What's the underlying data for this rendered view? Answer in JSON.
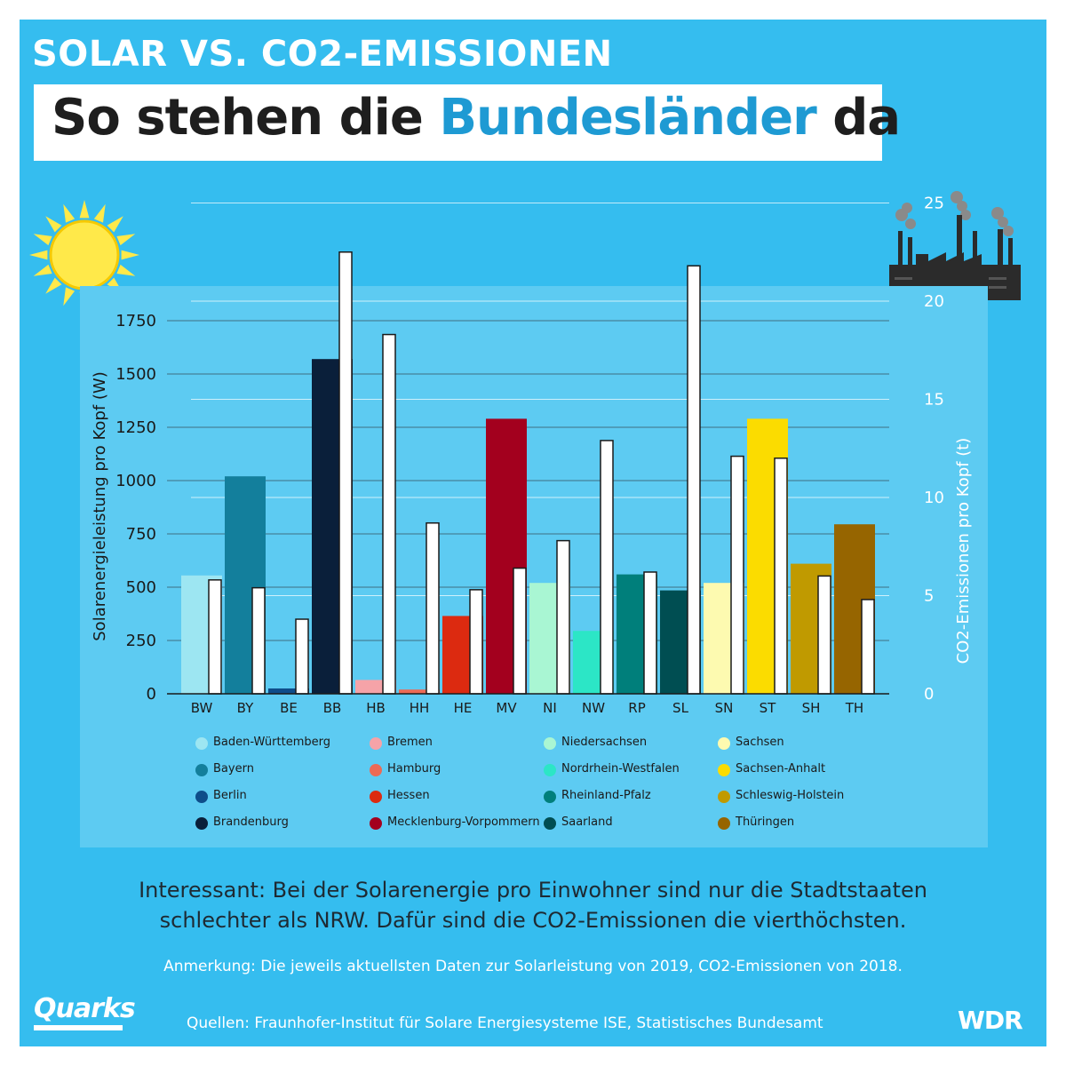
{
  "kicker": "SOLAR VS. CO2-EMISSIONEN",
  "title": {
    "before": "So stehen die ",
    "highlight": "Bundesländer",
    "after": " da"
  },
  "chart_data": {
    "type": "bar",
    "categories": [
      "BW",
      "BY",
      "BE",
      "BB",
      "HB",
      "HH",
      "HE",
      "MV",
      "NI",
      "NW",
      "RP",
      "SL",
      "SN",
      "ST",
      "SH",
      "TH"
    ],
    "series": [
      {
        "name": "Solarenergieleistung pro Kopf (W)",
        "axis": "left",
        "values": [
          555,
          1020,
          25,
          1570,
          65,
          20,
          365,
          1290,
          520,
          295,
          560,
          485,
          520,
          1290,
          610,
          795
        ]
      },
      {
        "name": "CO2-Emissionen pro Kopf (t)",
        "axis": "right",
        "values": [
          5.8,
          5.4,
          3.8,
          22.5,
          18.3,
          8.7,
          5.3,
          6.4,
          7.8,
          12.9,
          6.2,
          21.8,
          12.1,
          12.0,
          6.0,
          4.8
        ]
      }
    ],
    "colors": [
      "#9de6f2",
      "#137f9c",
      "#0e4d8a",
      "#0a1f3a",
      "#f5a3a8",
      "#ec6a55",
      "#dc2a10",
      "#a3001e",
      "#a9f6d3",
      "#2ce6c6",
      "#007f7b",
      "#004e52",
      "#fdfab0",
      "#fbdc00",
      "#c09a00",
      "#966500"
    ],
    "ylabel": "Solarenergieleistung pro Kopf (W)",
    "y2label": "CO2-Emissionen pro Kopf (t)",
    "ylim": [
      0,
      1750
    ],
    "y2lim": [
      0,
      27.5
    ],
    "yticks": [
      0,
      250,
      500,
      750,
      1000,
      1250,
      1500,
      1750
    ],
    "y2ticks": [
      0,
      5,
      10,
      15,
      20,
      25
    ],
    "grid": true,
    "legend": [
      {
        "name": "Baden-Württemberg",
        "color": "#9de6f2"
      },
      {
        "name": "Bayern",
        "color": "#137f9c"
      },
      {
        "name": "Berlin",
        "color": "#0e4d8a"
      },
      {
        "name": "Brandenburg",
        "color": "#0a1f3a"
      },
      {
        "name": "Bremen",
        "color": "#f5a3a8"
      },
      {
        "name": "Hamburg",
        "color": "#ec6a55"
      },
      {
        "name": "Hessen",
        "color": "#dc2a10"
      },
      {
        "name": "Mecklenburg-Vorpommern",
        "color": "#a3001e"
      },
      {
        "name": "Niedersachsen",
        "color": "#a9f6d3"
      },
      {
        "name": "Nordrhein-Westfalen",
        "color": "#2ce6c6"
      },
      {
        "name": "Rheinland-Pfalz",
        "color": "#007f7b"
      },
      {
        "name": "Saarland",
        "color": "#004e52"
      },
      {
        "name": "Sachsen",
        "color": "#fdfab0"
      },
      {
        "name": "Sachsen-Anhalt",
        "color": "#fbdc00"
      },
      {
        "name": "Schleswig-Holstein",
        "color": "#c09a00"
      },
      {
        "name": "Thüringen",
        "color": "#966500"
      }
    ]
  },
  "note": {
    "line1": "Interessant: Bei der Solarenergie pro Einwohner sind nur die Stadtstaaten",
    "line2": "schlechter als NRW. Dafür sind die CO2-Emissionen die vierthöchsten."
  },
  "anmerkung": "Anmerkung: Die jeweils aktuellsten Daten zur Solarleistung von 2019, CO2-Emissionen von 2018.",
  "sources": "Quellen: Fraunhofer-Institut für Solare Energiesysteme ISE, Statistisches Bundesamt",
  "brand": {
    "left": "Quarks",
    "right": "WDR"
  },
  "icons": {
    "left": "sun-icon",
    "right": "factory-icon"
  }
}
